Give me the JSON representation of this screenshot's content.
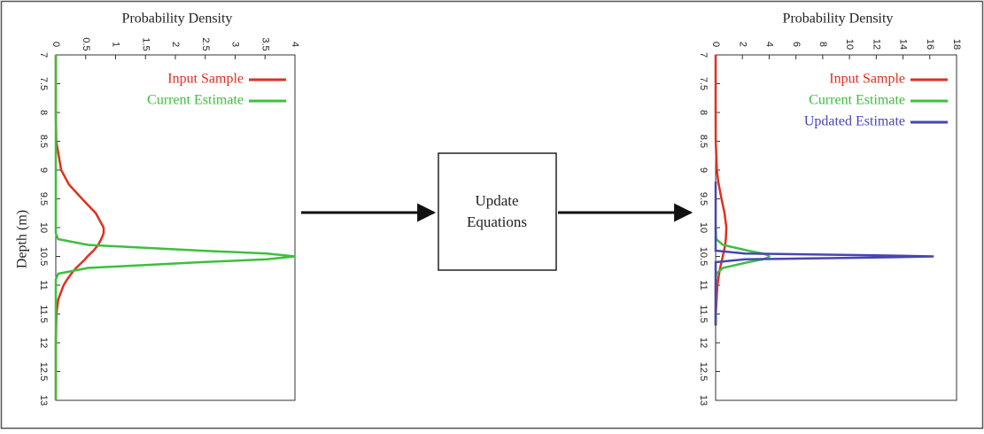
{
  "chart_data": [
    {
      "type": "line",
      "orientation": "depth-down",
      "title": "Probability Density",
      "ylabel": "Depth (m)",
      "x": [
        7,
        7.5,
        8,
        8.5,
        9,
        9.25,
        9.5,
        9.75,
        10,
        10.1,
        10.2,
        10.3,
        10.4,
        10.45,
        10.5,
        10.55,
        10.6,
        10.7,
        10.8,
        10.9,
        11,
        11.25,
        11.5,
        12,
        12.5,
        13
      ],
      "xlim": [
        7,
        13
      ],
      "xticks": [
        7,
        7.5,
        8,
        8.5,
        9,
        9.5,
        10,
        10.5,
        11,
        11.5,
        12,
        12.5,
        13
      ],
      "ylim": [
        0,
        4
      ],
      "yticks": [
        0,
        0.5,
        1,
        1.5,
        2,
        2.5,
        3,
        3.5,
        4
      ],
      "legend": "top-right",
      "series": [
        {
          "name": "Input Sample",
          "color": "#e0301e",
          "values": [
            0,
            0,
            0,
            0.007,
            0.09,
            0.22,
            0.44,
            0.67,
            0.8,
            0.8,
            0.76,
            0.71,
            0.63,
            0.58,
            0.53,
            0.49,
            0.44,
            0.34,
            0.26,
            0.19,
            0.13,
            0.04,
            0.01,
            0,
            0,
            0
          ]
        },
        {
          "name": "Current Estimate",
          "color": "#3cc03c",
          "values": [
            0,
            0,
            0,
            0,
            0,
            0,
            0,
            0,
            0,
            0,
            0.04,
            0.54,
            2.43,
            3.53,
            4,
            3.53,
            2.43,
            0.54,
            0.04,
            0,
            0,
            0,
            0,
            0,
            0,
            0
          ]
        }
      ]
    },
    {
      "type": "line",
      "orientation": "depth-down",
      "title": "Probability Density",
      "x": [
        7,
        7.5,
        8,
        8.5,
        9,
        9.2,
        9.5,
        9.75,
        10,
        10.2,
        10.3,
        10.4,
        10.45,
        10.48,
        10.5,
        10.52,
        10.55,
        10.6,
        10.7,
        10.8,
        11,
        11.5,
        11.7,
        12,
        12.5,
        13
      ],
      "xlim": [
        7,
        13
      ],
      "xticks": [
        7,
        7.5,
        8,
        8.5,
        9,
        9.5,
        10,
        10.5,
        11,
        11.5,
        12,
        12.5,
        13
      ],
      "ylim": [
        0,
        18
      ],
      "yticks": [
        0,
        2,
        4,
        6,
        8,
        10,
        12,
        14,
        16,
        18
      ],
      "legend": "top-right",
      "series": [
        {
          "name": "Input Sample",
          "color": "#e0301e",
          "values": [
            0,
            0,
            0,
            0.007,
            0.09,
            0.19,
            0.44,
            0.67,
            0.8,
            0.76,
            0.71,
            0.63,
            0.58,
            0.55,
            0.53,
            0.51,
            0.49,
            0.44,
            0.34,
            0.26,
            0.13,
            0.01,
            0,
            null,
            null,
            null
          ]
        },
        {
          "name": "Current Estimate",
          "color": "#3cc03c",
          "values": [
            null,
            null,
            null,
            null,
            null,
            null,
            null,
            null,
            0,
            0.04,
            0.54,
            2.43,
            3.53,
            3.92,
            4,
            3.92,
            3.53,
            2.43,
            0.54,
            0.04,
            0,
            0,
            0,
            null,
            null,
            null
          ]
        },
        {
          "name": "Updated Estimate",
          "color": "#4646b4",
          "values": [
            null,
            null,
            null,
            null,
            null,
            0,
            0,
            0,
            0,
            0,
            0,
            0,
            2.2,
            11.8,
            16.3,
            11.8,
            2.2,
            0,
            0,
            0,
            0,
            0,
            0,
            null,
            null,
            null
          ]
        }
      ]
    }
  ],
  "diagram": {
    "box_lines": [
      "Update",
      "Equations"
    ]
  }
}
